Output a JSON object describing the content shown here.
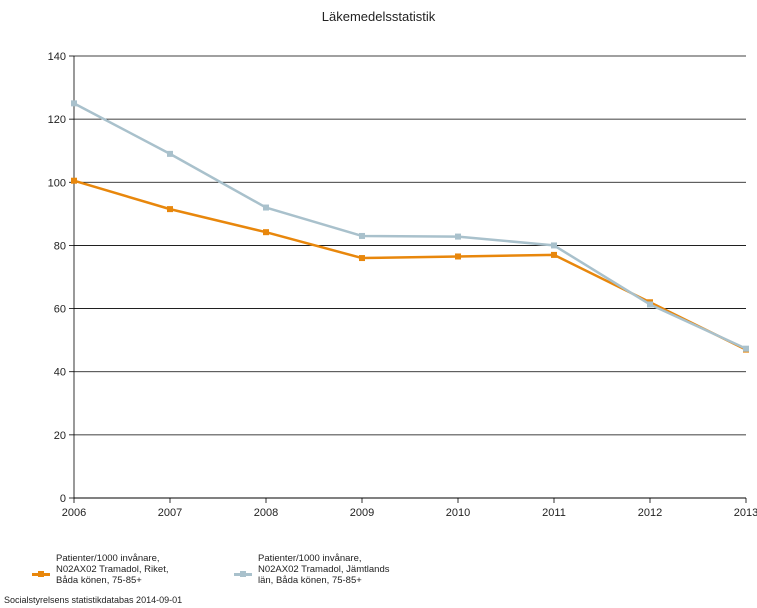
{
  "chart_data": {
    "type": "line",
    "title": "Läkemedelsstatistik",
    "xlabel": "",
    "ylabel": "",
    "x": [
      "2006",
      "2007",
      "2008",
      "2009",
      "2010",
      "2011",
      "2012",
      "2013"
    ],
    "ylim": [
      0,
      140
    ],
    "yticks": [
      "0",
      "20",
      "40",
      "60",
      "80",
      "100",
      "120",
      "140"
    ],
    "grid": true,
    "legend_placement": "bottom-left",
    "series": [
      {
        "name": "Patienter/1000 invånare, N02AX02 Tramadol, Riket, Båda könen, 75-85+",
        "color": "#e8870c",
        "values": [
          100.5,
          91.5,
          84.2,
          76,
          76.5,
          77,
          62,
          47
        ]
      },
      {
        "name": "Patienter/1000 invånare, N02AX02 Tramadol, Jämtlands län, Båda könen, 75-85+",
        "color": "#a9c1cc",
        "values": [
          125,
          109,
          92,
          83,
          82.8,
          80,
          61.3,
          47.3
        ]
      }
    ]
  },
  "legend": {
    "item1_text": "Patienter/1000 invånare,\nN02AX02 Tramadol, Riket,\nBåda könen, 75-85+",
    "item2_text": "Patienter/1000 invånare,\nN02AX02 Tramadol, Jämtlands\nlän, Båda könen, 75-85+"
  },
  "source_note": "Socialstyrelsens statistikdatabas 2014-09-01"
}
